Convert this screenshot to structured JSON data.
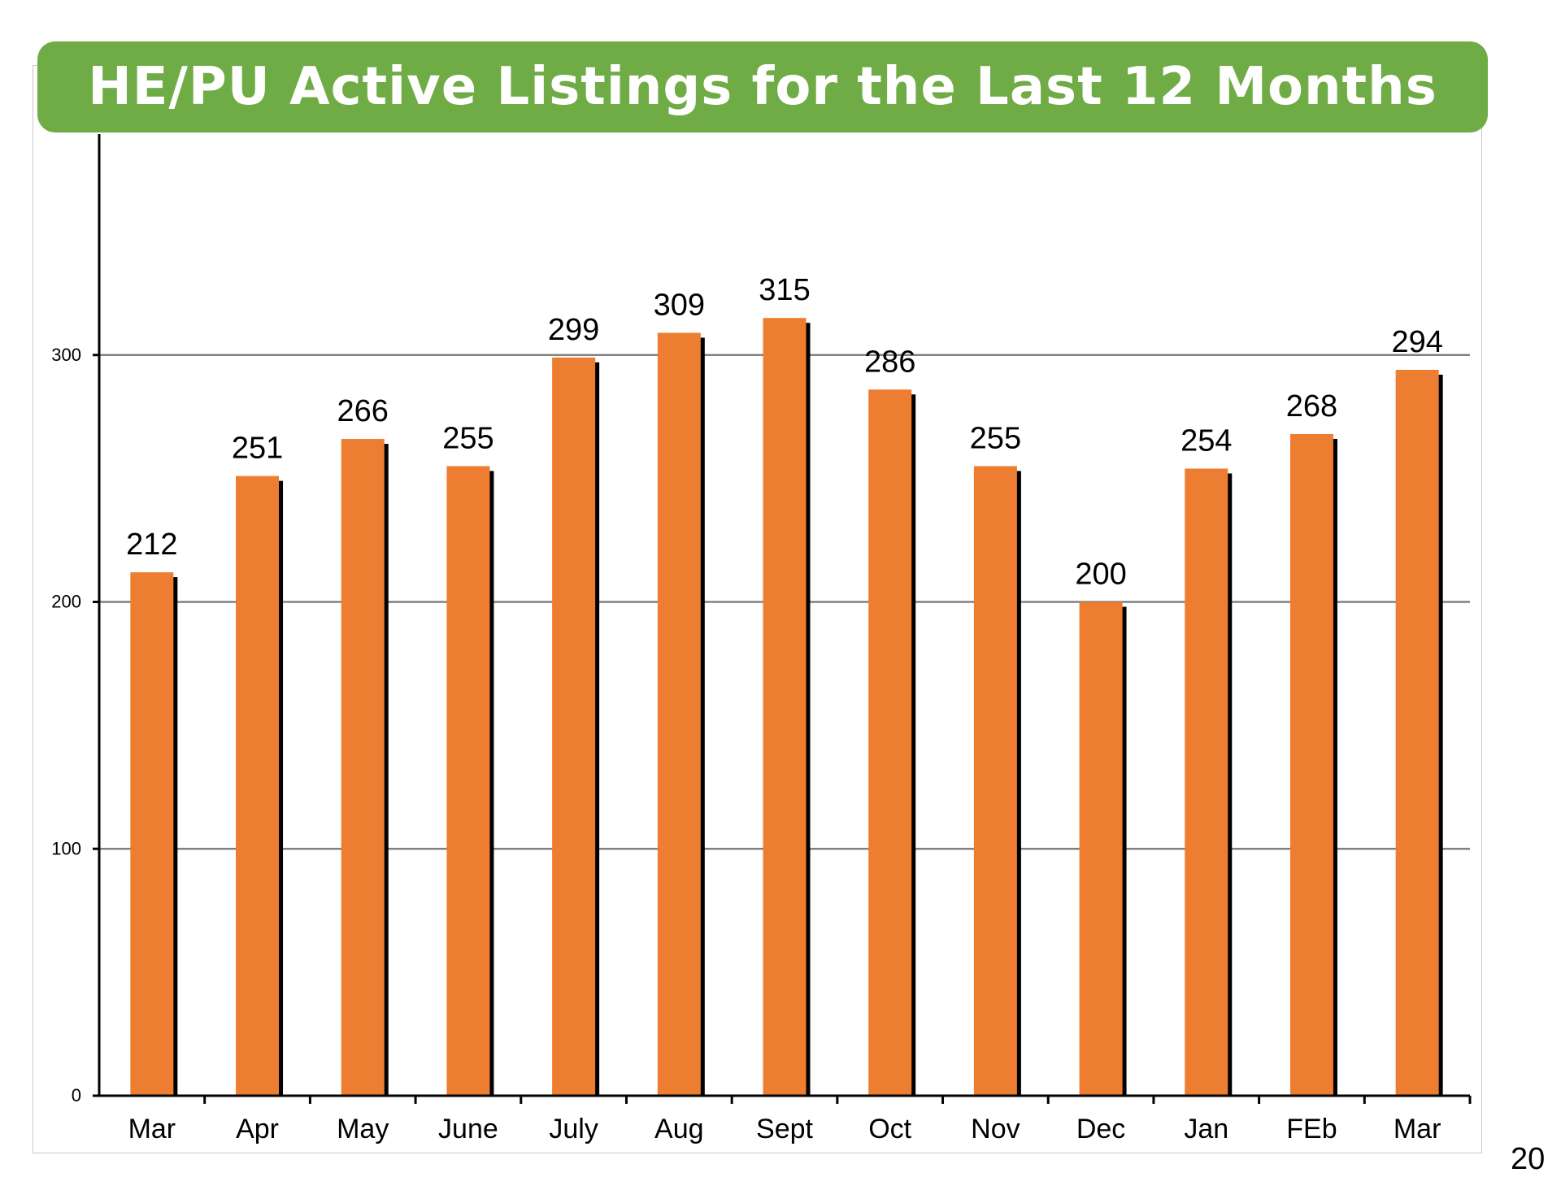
{
  "page": {
    "number": "20"
  },
  "chart_data": {
    "type": "bar",
    "title": "HE/PU Active Listings for the Last 12 Months",
    "categories": [
      "Mar",
      "Apr",
      "May",
      "June",
      "July",
      "Aug",
      "Sept",
      "Oct",
      "Nov",
      "Dec",
      "Jan",
      "FEb",
      "Mar"
    ],
    "values": [
      212,
      251,
      266,
      255,
      299,
      309,
      315,
      286,
      255,
      200,
      254,
      268,
      294
    ],
    "data_labels": [
      "212",
      "251",
      "266",
      "255",
      "299",
      "309",
      "315",
      "286",
      "255",
      "200",
      "254",
      "268",
      "294"
    ],
    "ylim": [
      0,
      400
    ],
    "yticks": [
      0,
      100,
      200,
      300
    ],
    "ytick_labels": [
      "0",
      "100",
      "200",
      "300"
    ],
    "grid": true,
    "legend": "none",
    "colors": {
      "bar": "#ed7d31",
      "shadow": "#000000",
      "title_bg": "#6fac46",
      "grid": "#808080"
    }
  }
}
